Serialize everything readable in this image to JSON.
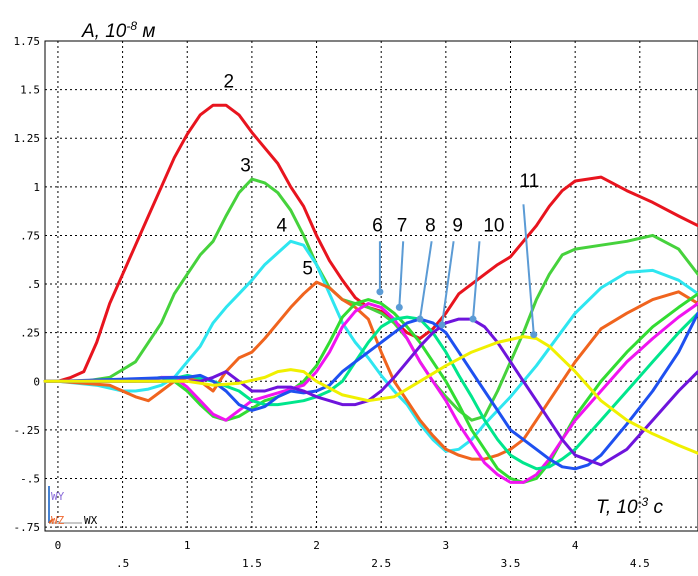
{
  "chart_data": {
    "type": "line",
    "ylabel": "A, 10",
    "ylabel_exp": "-8",
    "ylabel_unit": " м",
    "xlabel": "T, 10",
    "xlabel_exp": "-3",
    "xlabel_unit": " с",
    "xlim": [
      -0.1,
      4.95
    ],
    "ylim": [
      -0.77,
      1.75
    ],
    "grid": true,
    "x_ticks_major": [
      "0",
      "1",
      "2",
      "3",
      "4"
    ],
    "x_ticks_minor": [
      ".5",
      "1.5",
      "2.5",
      "3.5",
      "4.5"
    ],
    "y_ticks": [
      "1.75",
      "1.5",
      "1.25",
      "1",
      ".75",
      ".5",
      ".25",
      "0",
      "-.25",
      "-.5",
      "-.75"
    ],
    "axis_labels": {
      "wy": "WY",
      "wz": "WZ",
      "wx": "WX"
    },
    "series": [
      {
        "name": "2",
        "color": "#e8141e",
        "x": [
          -0.1,
          0.0,
          0.1,
          0.2,
          0.3,
          0.4,
          0.5,
          0.6,
          0.7,
          0.8,
          0.9,
          1.0,
          1.1,
          1.2,
          1.3,
          1.4,
          1.5,
          1.6,
          1.7,
          1.8,
          1.9,
          2.0,
          2.1,
          2.2,
          2.3,
          2.4,
          2.5,
          2.6,
          2.7,
          2.8,
          2.9,
          3.0,
          3.1,
          3.2,
          3.3,
          3.4,
          3.5,
          3.6,
          3.7,
          3.8,
          3.9,
          4.0,
          4.2,
          4.4,
          4.6,
          4.8,
          4.95
        ],
        "y": [
          0,
          0,
          0.02,
          0.05,
          0.2,
          0.4,
          0.55,
          0.7,
          0.85,
          1.0,
          1.15,
          1.27,
          1.37,
          1.42,
          1.42,
          1.37,
          1.28,
          1.2,
          1.12,
          1.0,
          0.9,
          0.75,
          0.62,
          0.52,
          0.43,
          0.38,
          0.36,
          0.31,
          0.25,
          0.22,
          0.27,
          0.35,
          0.45,
          0.5,
          0.55,
          0.6,
          0.64,
          0.72,
          0.8,
          0.9,
          0.98,
          1.03,
          1.05,
          0.98,
          0.92,
          0.85,
          0.8
        ]
      },
      {
        "name": "3",
        "color": "#46d23c",
        "x": [
          -0.1,
          0.0,
          0.2,
          0.4,
          0.6,
          0.7,
          0.8,
          0.9,
          1.0,
          1.1,
          1.2,
          1.3,
          1.4,
          1.5,
          1.6,
          1.7,
          1.8,
          1.9,
          2.0,
          2.1,
          2.2,
          2.3,
          2.4,
          2.5,
          2.6,
          2.7,
          2.8,
          2.9,
          3.0,
          3.1,
          3.2,
          3.3,
          3.4,
          3.5,
          3.6,
          3.7,
          3.8,
          3.9,
          4.0,
          4.2,
          4.4,
          4.6,
          4.8,
          4.95
        ],
        "y": [
          0,
          0,
          0,
          0.02,
          0.1,
          0.2,
          0.3,
          0.45,
          0.55,
          0.65,
          0.72,
          0.85,
          0.97,
          1.04,
          1.02,
          0.97,
          0.88,
          0.75,
          0.6,
          0.48,
          0.42,
          0.4,
          0.38,
          0.35,
          0.3,
          0.22,
          0.1,
          0.0,
          -0.08,
          -0.15,
          -0.2,
          -0.18,
          -0.05,
          0.1,
          0.25,
          0.42,
          0.55,
          0.65,
          0.68,
          0.7,
          0.72,
          0.75,
          0.68,
          0.55
        ]
      },
      {
        "name": "4",
        "color": "#2ee6f0",
        "x": [
          -0.1,
          0.0,
          0.3,
          0.5,
          0.6,
          0.7,
          0.8,
          0.9,
          1.0,
          1.1,
          1.2,
          1.3,
          1.4,
          1.5,
          1.6,
          1.7,
          1.8,
          1.9,
          2.0,
          2.1,
          2.2,
          2.3,
          2.4,
          2.5,
          2.6,
          2.7,
          2.8,
          2.9,
          3.0,
          3.1,
          3.2,
          3.3,
          3.4,
          3.5,
          3.6,
          3.7,
          3.8,
          3.9,
          4.0,
          4.2,
          4.4,
          4.6,
          4.8,
          4.95
        ],
        "y": [
          0,
          0,
          -0.02,
          -0.05,
          -0.05,
          -0.04,
          -0.02,
          0.02,
          0.1,
          0.18,
          0.3,
          0.38,
          0.45,
          0.52,
          0.6,
          0.66,
          0.72,
          0.7,
          0.6,
          0.45,
          0.3,
          0.2,
          0.12,
          0.03,
          -0.05,
          -0.12,
          -0.22,
          -0.3,
          -0.36,
          -0.35,
          -0.3,
          -0.22,
          -0.15,
          -0.08,
          0.0,
          0.08,
          0.17,
          0.26,
          0.35,
          0.48,
          0.56,
          0.57,
          0.52,
          0.45
        ]
      },
      {
        "name": "5",
        "color": "#f0641e",
        "x": [
          -0.1,
          0.0,
          0.4,
          0.6,
          0.7,
          0.8,
          0.9,
          1.0,
          1.1,
          1.2,
          1.3,
          1.4,
          1.5,
          1.6,
          1.7,
          1.8,
          1.9,
          2.0,
          2.1,
          2.2,
          2.3,
          2.4,
          2.5,
          2.6,
          2.7,
          2.8,
          2.9,
          3.0,
          3.1,
          3.2,
          3.3,
          3.4,
          3.5,
          3.6,
          3.7,
          3.8,
          3.9,
          4.0,
          4.2,
          4.4,
          4.6,
          4.8,
          4.95
        ],
        "y": [
          0,
          0,
          -0.02,
          -0.08,
          -0.1,
          -0.05,
          0.0,
          0.02,
          0.0,
          -0.05,
          0.05,
          0.12,
          0.15,
          0.22,
          0.3,
          0.38,
          0.45,
          0.51,
          0.48,
          0.42,
          0.38,
          0.32,
          0.15,
          0.0,
          -0.1,
          -0.2,
          -0.28,
          -0.35,
          -0.38,
          -0.4,
          -0.4,
          -0.38,
          -0.35,
          -0.3,
          -0.2,
          -0.1,
          0.0,
          0.1,
          0.27,
          0.35,
          0.42,
          0.46,
          0.4
        ]
      },
      {
        "name": "6",
        "color": "#32dc32",
        "x": [
          -0.1,
          0.0,
          0.6,
          0.7,
          0.8,
          0.9,
          1.0,
          1.1,
          1.2,
          1.3,
          1.4,
          1.5,
          1.6,
          1.7,
          1.8,
          1.9,
          2.0,
          2.1,
          2.2,
          2.3,
          2.4,
          2.5,
          2.6,
          2.7,
          2.8,
          2.9,
          3.0,
          3.1,
          3.2,
          3.3,
          3.4,
          3.5,
          3.6,
          3.7,
          3.8,
          3.9,
          4.0,
          4.2,
          4.4,
          4.6,
          4.8,
          4.95
        ],
        "y": [
          0,
          0,
          0.0,
          0.01,
          0.02,
          0.0,
          -0.05,
          -0.12,
          -0.18,
          -0.2,
          -0.18,
          -0.14,
          -0.1,
          -0.08,
          -0.05,
          0.0,
          0.08,
          0.2,
          0.33,
          0.4,
          0.42,
          0.4,
          0.35,
          0.28,
          0.2,
          0.1,
          0.0,
          -0.12,
          -0.25,
          -0.35,
          -0.45,
          -0.5,
          -0.52,
          -0.5,
          -0.42,
          -0.3,
          -0.18,
          0.0,
          0.15,
          0.28,
          0.38,
          0.45
        ]
      },
      {
        "name": "7",
        "color": "#f014f0",
        "x": [
          -0.1,
          0.0,
          0.7,
          0.8,
          0.9,
          1.0,
          1.1,
          1.2,
          1.3,
          1.4,
          1.5,
          1.6,
          1.7,
          1.8,
          1.9,
          2.0,
          2.1,
          2.2,
          2.3,
          2.4,
          2.5,
          2.6,
          2.7,
          2.8,
          2.9,
          3.0,
          3.1,
          3.2,
          3.3,
          3.4,
          3.5,
          3.6,
          3.7,
          3.8,
          3.9,
          4.0,
          4.2,
          4.4,
          4.6,
          4.8,
          4.95
        ],
        "y": [
          0,
          0,
          0.0,
          0.02,
          0.02,
          -0.03,
          -0.1,
          -0.17,
          -0.2,
          -0.15,
          -0.1,
          -0.08,
          -0.06,
          -0.04,
          -0.02,
          0.05,
          0.15,
          0.28,
          0.36,
          0.4,
          0.38,
          0.32,
          0.22,
          0.1,
          0.0,
          -0.1,
          -0.22,
          -0.32,
          -0.42,
          -0.48,
          -0.52,
          -0.52,
          -0.48,
          -0.4,
          -0.3,
          -0.2,
          -0.05,
          0.1,
          0.22,
          0.33,
          0.4
        ]
      },
      {
        "name": "8",
        "color": "#00e68c",
        "x": [
          -0.1,
          0.0,
          0.8,
          1.0,
          1.2,
          1.4,
          1.5,
          1.6,
          1.7,
          1.8,
          1.9,
          2.0,
          2.1,
          2.2,
          2.3,
          2.4,
          2.5,
          2.6,
          2.7,
          2.8,
          2.9,
          3.0,
          3.1,
          3.2,
          3.3,
          3.4,
          3.5,
          3.6,
          3.7,
          3.8,
          3.9,
          4.0,
          4.2,
          4.4,
          4.6,
          4.8,
          4.95
        ],
        "y": [
          0,
          0,
          0.0,
          0.03,
          0.0,
          -0.05,
          -0.1,
          -0.12,
          -0.12,
          -0.11,
          -0.1,
          -0.08,
          -0.05,
          0.0,
          0.1,
          0.2,
          0.28,
          0.32,
          0.33,
          0.32,
          0.25,
          0.15,
          0.03,
          -0.08,
          -0.2,
          -0.3,
          -0.38,
          -0.42,
          -0.45,
          -0.44,
          -0.4,
          -0.35,
          -0.2,
          -0.05,
          0.1,
          0.25,
          0.35
        ]
      },
      {
        "name": "9",
        "color": "#1e50f0",
        "x": [
          -0.1,
          0.0,
          0.9,
          1.0,
          1.1,
          1.2,
          1.3,
          1.4,
          1.5,
          1.6,
          1.7,
          1.8,
          1.9,
          2.0,
          2.1,
          2.2,
          2.3,
          2.4,
          2.5,
          2.6,
          2.7,
          2.8,
          2.9,
          3.0,
          3.1,
          3.2,
          3.3,
          3.4,
          3.5,
          3.6,
          3.7,
          3.8,
          3.9,
          4.0,
          4.1,
          4.2,
          4.3,
          4.4,
          4.6,
          4.8,
          4.95
        ],
        "y": [
          0,
          0,
          0.02,
          0.02,
          0.03,
          0.0,
          -0.05,
          -0.12,
          -0.15,
          -0.13,
          -0.08,
          -0.05,
          -0.06,
          -0.05,
          -0.02,
          0.05,
          0.1,
          0.15,
          0.2,
          0.25,
          0.3,
          0.32,
          0.3,
          0.25,
          0.15,
          0.05,
          -0.05,
          -0.15,
          -0.25,
          -0.3,
          -0.35,
          -0.4,
          -0.44,
          -0.45,
          -0.43,
          -0.38,
          -0.3,
          -0.22,
          -0.05,
          0.15,
          0.35
        ]
      },
      {
        "name": "10",
        "color": "#6e14dc",
        "x": [
          -0.1,
          0.0,
          1.0,
          1.1,
          1.2,
          1.3,
          1.4,
          1.5,
          1.6,
          1.7,
          1.8,
          1.9,
          2.0,
          2.1,
          2.2,
          2.3,
          2.4,
          2.5,
          2.6,
          2.7,
          2.8,
          2.9,
          3.0,
          3.1,
          3.2,
          3.3,
          3.4,
          3.5,
          3.6,
          3.7,
          3.8,
          3.9,
          4.0,
          4.2,
          4.4,
          4.6,
          4.8,
          4.95
        ],
        "y": [
          0,
          0,
          0.0,
          0.0,
          0.02,
          0.05,
          0.0,
          -0.05,
          -0.05,
          -0.03,
          -0.03,
          -0.05,
          -0.08,
          -0.1,
          -0.12,
          -0.12,
          -0.1,
          -0.05,
          0.02,
          0.1,
          0.18,
          0.25,
          0.3,
          0.32,
          0.32,
          0.28,
          0.2,
          0.1,
          0.0,
          -0.1,
          -0.2,
          -0.3,
          -0.38,
          -0.43,
          -0.35,
          -0.2,
          -0.05,
          0.05
        ]
      },
      {
        "name": "11",
        "color": "#f0f000",
        "x": [
          -0.1,
          0.0,
          0.5,
          1.0,
          1.2,
          1.4,
          1.6,
          1.7,
          1.8,
          1.9,
          2.0,
          2.2,
          2.4,
          2.6,
          2.8,
          3.0,
          3.2,
          3.4,
          3.6,
          3.7,
          3.8,
          4.0,
          4.2,
          4.4,
          4.6,
          4.8,
          4.95
        ],
        "y": [
          0,
          0,
          0.0,
          0.0,
          -0.02,
          -0.01,
          0.02,
          0.05,
          0.06,
          0.05,
          0.0,
          -0.07,
          -0.1,
          -0.08,
          0.0,
          0.08,
          0.15,
          0.2,
          0.23,
          0.22,
          0.18,
          0.05,
          -0.1,
          -0.2,
          -0.27,
          -0.33,
          -0.37
        ]
      }
    ],
    "series_labels": [
      {
        "text": "2",
        "at_x": 1.28,
        "at_y": 1.51
      },
      {
        "text": "3",
        "at_x": 1.41,
        "at_y": 1.08
      },
      {
        "text": "4",
        "at_x": 1.69,
        "at_y": 0.77
      },
      {
        "text": "5",
        "at_x": 1.89,
        "at_y": 0.55
      },
      {
        "text": "6",
        "at_x": 2.43,
        "at_y": 0.77
      },
      {
        "text": "7",
        "at_x": 2.62,
        "at_y": 0.77
      },
      {
        "text": "8",
        "at_x": 2.84,
        "at_y": 0.77
      },
      {
        "text": "9",
        "at_x": 3.05,
        "at_y": 0.77
      },
      {
        "text": "10",
        "at_x": 3.29,
        "at_y": 0.77
      },
      {
        "text": "11",
        "at_x": 3.57,
        "at_y": 1.0
      }
    ],
    "callouts": [
      {
        "label": "6",
        "from": [
          2.49,
          0.72
        ],
        "to": [
          2.49,
          0.46
        ],
        "color": "#5b9bd5"
      },
      {
        "label": "7",
        "from": [
          2.67,
          0.72
        ],
        "to": [
          2.64,
          0.38
        ],
        "color": "#5b9bd5"
      },
      {
        "label": "8",
        "from": [
          2.89,
          0.72
        ],
        "to": [
          2.8,
          0.32
        ],
        "color": "#5b9bd5"
      },
      {
        "label": "9",
        "from": [
          3.06,
          0.72
        ],
        "to": [
          2.97,
          0.29
        ],
        "color": "#5b9bd5"
      },
      {
        "label": "10",
        "from": [
          3.26,
          0.72
        ],
        "to": [
          3.21,
          0.32
        ],
        "color": "#5b9bd5"
      },
      {
        "label": "11",
        "from": [
          3.6,
          0.91
        ],
        "to": [
          3.68,
          0.24
        ],
        "color": "#5b9bd5"
      }
    ]
  }
}
